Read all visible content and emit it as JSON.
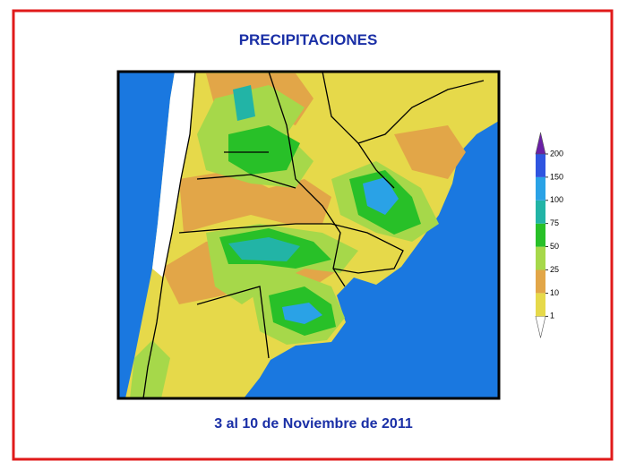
{
  "header": {
    "title": "PRECIPITACIONES"
  },
  "footer": {
    "subtitle": "3 al 10 de Noviembre de 2011"
  },
  "legend": {
    "boundaries": [
      1,
      10,
      25,
      50,
      75,
      100,
      150,
      200
    ],
    "colors": [
      "#ffffff",
      "#e6d94a",
      "#e2a648",
      "#a6d84a",
      "#28c028",
      "#22b4a6",
      "#2aa2e6",
      "#2f55e0",
      "#6a1fa6"
    ]
  }
}
